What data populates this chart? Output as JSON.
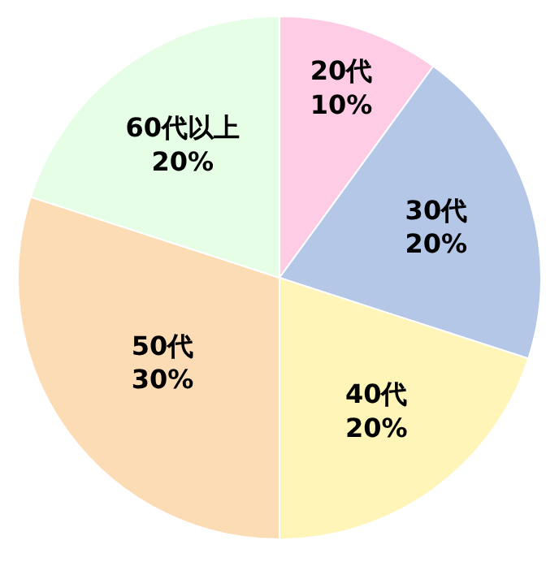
{
  "chart_data": {
    "type": "pie",
    "categories": [
      "20代",
      "30代",
      "40代",
      "50代",
      "60代以上"
    ],
    "values": [
      10,
      20,
      20,
      30,
      20
    ],
    "value_labels": [
      "10%",
      "20%",
      "20%",
      "30%",
      "20%"
    ],
    "colors": [
      "#ffcce6",
      "#b4c7e7",
      "#fff5b8",
      "#fcdcb4",
      "#e6fde6"
    ],
    "legend": false
  }
}
